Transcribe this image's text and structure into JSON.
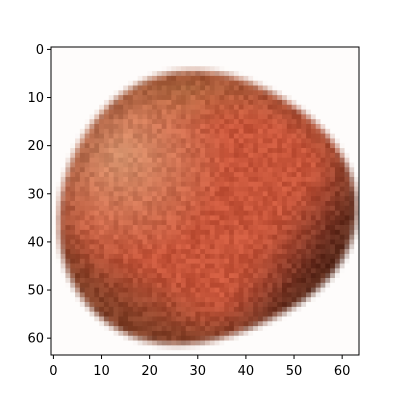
{
  "chart_data": {
    "type": "heatmap",
    "title": "",
    "xlabel": "",
    "ylabel": "",
    "image_size": [
      64,
      64
    ],
    "xlim": [
      -0.5,
      63.5
    ],
    "ylim": [
      63.5,
      -0.5
    ],
    "origin": "upper",
    "grid": false,
    "legend": "none",
    "x_ticks": [
      0,
      10,
      20,
      30,
      40,
      50,
      60
    ],
    "y_ticks": [
      0,
      10,
      20,
      30,
      40,
      50,
      60
    ],
    "x_tick_labels": [
      "0",
      "10",
      "20",
      "30",
      "40",
      "50",
      "60"
    ],
    "y_tick_labels": [
      "0",
      "10",
      "20",
      "30",
      "40",
      "50",
      "60"
    ],
    "content": "pixelated reddish-brown rounded fruit-like blob on white background",
    "palette": {
      "background": "#fefcfb",
      "core": "#c8553a",
      "highlight": "#d59a73",
      "shadow": "#3c1a12",
      "edge": "#6f3a22"
    }
  }
}
